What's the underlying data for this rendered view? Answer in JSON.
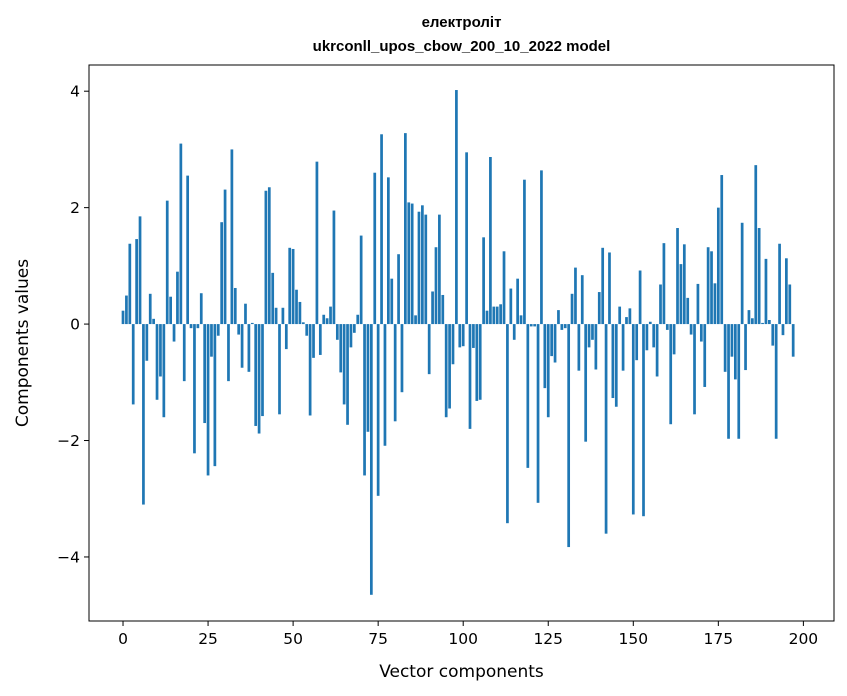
{
  "chart_data": {
    "type": "bar",
    "title": "електроліт",
    "subtitle": "ukrconll_upos_cbow_200_10_2022 model",
    "xlabel": "Vector components",
    "ylabel": "Components values",
    "xlim": [
      -10,
      209
    ],
    "ylim": [
      -5.1,
      4.45
    ],
    "xticks": [
      0,
      25,
      50,
      75,
      100,
      125,
      150,
      175,
      200
    ],
    "yticks": [
      -4,
      -2,
      0,
      2,
      4
    ],
    "ytick_labels": [
      "−4",
      "−2",
      "0",
      "2",
      "4"
    ],
    "grid": false,
    "bar_color": "#1f77b4",
    "series": [
      {
        "values": [
          0.23,
          0.49,
          1.38,
          -1.38,
          1.46,
          1.85,
          -3.1,
          -0.63,
          0.52,
          0.09,
          -1.3,
          -0.9,
          -1.6,
          2.12,
          0.47,
          -0.3,
          0.9,
          3.1,
          -0.98,
          2.55,
          -0.07,
          -2.22,
          -0.07,
          0.53,
          -1.7,
          -2.6,
          -0.56,
          -2.44,
          -0.2,
          1.75,
          2.31,
          -0.98,
          3.0,
          0.62,
          -0.18,
          -0.75,
          0.35,
          -0.82,
          0.02,
          -1.75,
          -1.88,
          -1.58,
          2.29,
          2.35,
          0.88,
          0.28,
          -1.55,
          0.28,
          -0.43,
          1.31,
          1.29,
          0.59,
          0.38,
          0.03,
          -0.2,
          -1.57,
          -0.58,
          2.79,
          -0.53,
          0.16,
          0.1,
          0.3,
          1.95,
          -0.27,
          -0.83,
          -1.38,
          -1.73,
          -0.4,
          -0.15,
          0.16,
          1.52,
          -2.6,
          -1.85,
          -4.65,
          2.6,
          -2.95,
          3.26,
          -2.09,
          2.52,
          0.78,
          -1.67,
          1.2,
          -1.17,
          3.28,
          2.09,
          2.07,
          0.15,
          1.93,
          2.04,
          1.88,
          -0.86,
          0.56,
          1.32,
          1.88,
          0.5,
          -1.6,
          -1.45,
          -0.69,
          4.02,
          -0.4,
          -0.38,
          2.95,
          -1.8,
          -0.41,
          -1.32,
          -1.3,
          1.49,
          0.23,
          2.87,
          0.3,
          0.3,
          0.34,
          1.25,
          -3.42,
          0.61,
          -0.27,
          0.78,
          0.15,
          2.48,
          -2.47,
          -0.04,
          -0.04,
          -3.07,
          2.64,
          -1.1,
          -1.6,
          -0.55,
          -0.66,
          0.24,
          -0.1,
          -0.07,
          -3.83,
          0.52,
          0.97,
          -0.8,
          0.84,
          -2.02,
          -0.4,
          -0.27,
          -0.78,
          0.55,
          1.31,
          -3.6,
          1.23,
          -1.27,
          -1.42,
          0.3,
          -0.8,
          0.12,
          0.27,
          -3.27,
          -0.62,
          0.92,
          -3.3,
          -0.45,
          0.04,
          -0.4,
          -0.9,
          0.68,
          1.39,
          -0.1,
          -1.72,
          -0.52,
          1.65,
          1.03,
          1.37,
          0.45,
          -0.18,
          -1.55,
          0.69,
          -0.3,
          -1.08,
          1.32,
          1.25,
          0.7,
          2.0,
          2.56,
          -0.82,
          -1.97,
          -0.56,
          -0.95,
          -1.97,
          1.74,
          -0.79,
          0.24,
          0.1,
          2.73,
          1.65,
          0.02,
          1.12,
          0.07,
          -0.37,
          -1.97,
          1.38,
          -0.19,
          1.13,
          0.68,
          -0.56
        ]
      }
    ]
  }
}
